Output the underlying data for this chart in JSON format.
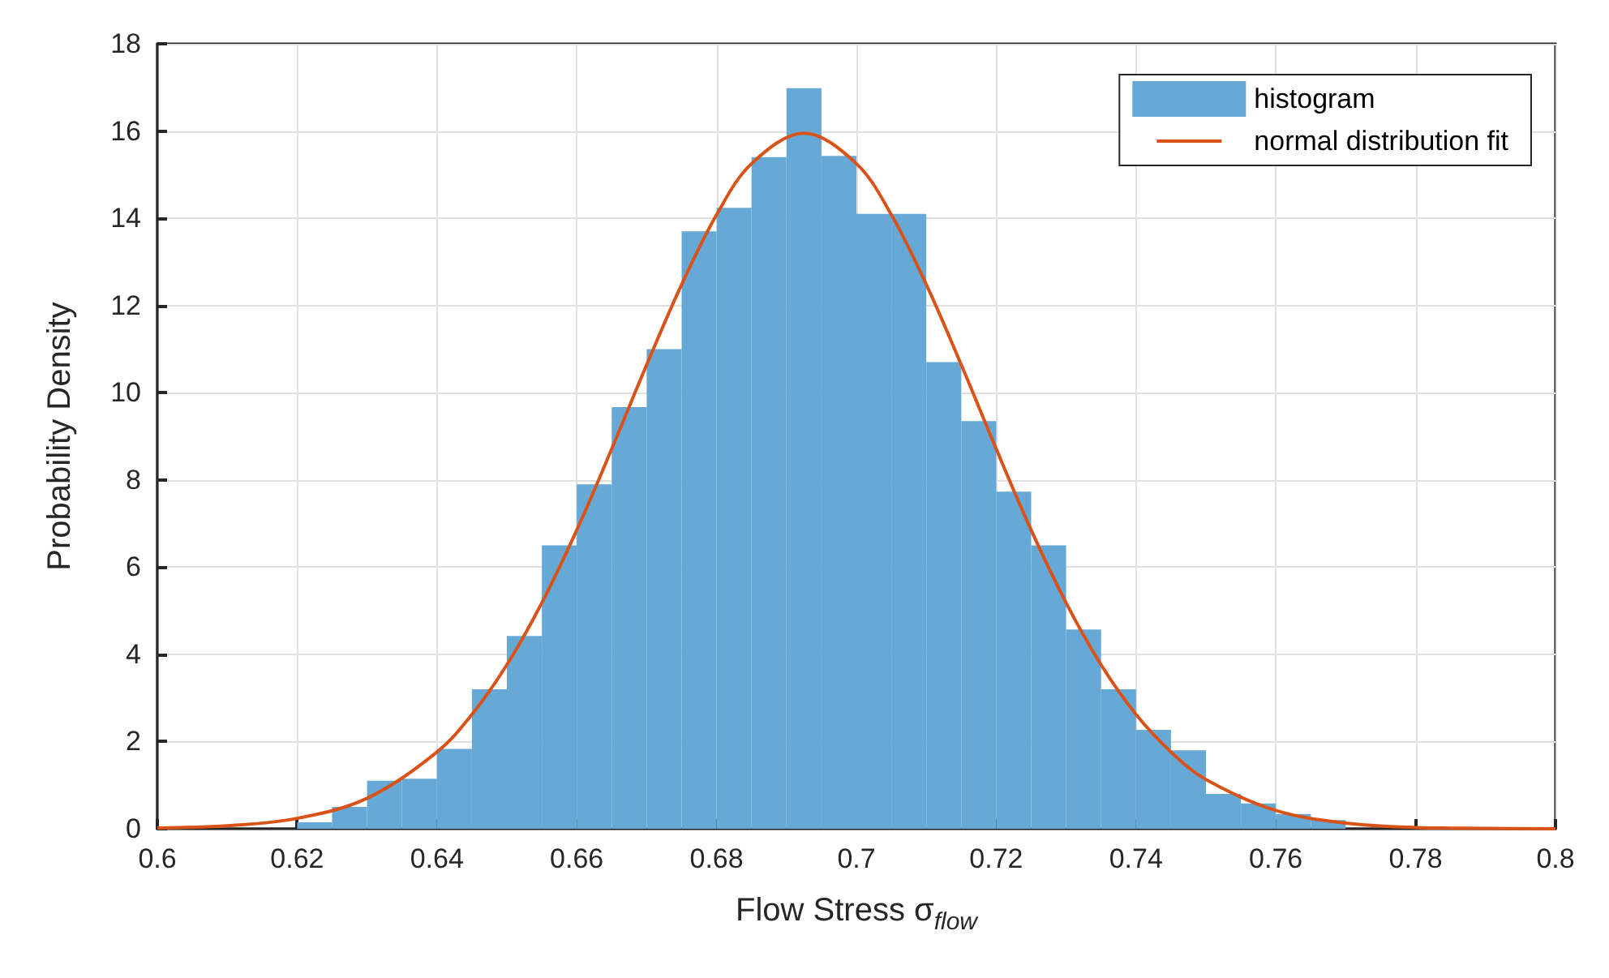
{
  "chart_data": {
    "type": "histogram",
    "xlabel": "Flow Stress σ$_{flow}$",
    "ylabel": "Probability Density",
    "bins": [
      0.62,
      0.625,
      0.63,
      0.635,
      0.64,
      0.645,
      0.65,
      0.655,
      0.66,
      0.665,
      0.67,
      0.675,
      0.68,
      0.685,
      0.69,
      0.695,
      0.7,
      0.705,
      0.71,
      0.715,
      0.72,
      0.725,
      0.73,
      0.735,
      0.74,
      0.745,
      0.75,
      0.755,
      0.76,
      0.765,
      0.77
    ],
    "series": [
      {
        "name": "histogram",
        "color": "#66a9d6",
        "values": [
          0.15,
          0.5,
          1.1,
          1.15,
          1.83,
          3.2,
          4.42,
          6.5,
          7.9,
          9.67,
          11.0,
          13.7,
          14.24,
          15.4,
          16.98,
          15.43,
          14.1,
          14.1,
          10.7,
          9.35,
          7.73,
          6.5,
          4.57,
          3.2,
          2.27,
          1.8,
          0.8,
          0.58,
          0.34,
          0.2
        ]
      },
      {
        "name": "normal distribution fit",
        "type": "line",
        "color": "#d95319",
        "x": [
          0.6,
          0.61,
          0.62,
          0.63,
          0.64,
          0.645,
          0.65,
          0.655,
          0.66,
          0.665,
          0.67,
          0.675,
          0.68,
          0.685,
          0.6925,
          0.7,
          0.705,
          0.71,
          0.715,
          0.72,
          0.725,
          0.73,
          0.735,
          0.74,
          0.745,
          0.75,
          0.76,
          0.77,
          0.78,
          0.79,
          0.8
        ],
        "values": [
          0.02,
          0.07,
          0.24,
          0.7,
          1.76,
          2.62,
          3.76,
          5.18,
          6.85,
          8.71,
          10.64,
          12.48,
          14.08,
          15.25,
          15.95,
          15.25,
          14.08,
          12.48,
          10.64,
          8.71,
          6.85,
          5.18,
          3.76,
          2.62,
          1.76,
          1.13,
          0.42,
          0.13,
          0.03,
          0.01,
          0.0
        ]
      }
    ],
    "xlim": [
      0.6,
      0.8
    ],
    "xticks": [
      0.6,
      0.62,
      0.64,
      0.66,
      0.68,
      0.7,
      0.72,
      0.74,
      0.76,
      0.78,
      0.8
    ],
    "ylim": [
      0,
      18
    ],
    "yticks": [
      0,
      2,
      4,
      6,
      8,
      10,
      12,
      14,
      16,
      18
    ],
    "grid": true,
    "legend": "top right"
  }
}
